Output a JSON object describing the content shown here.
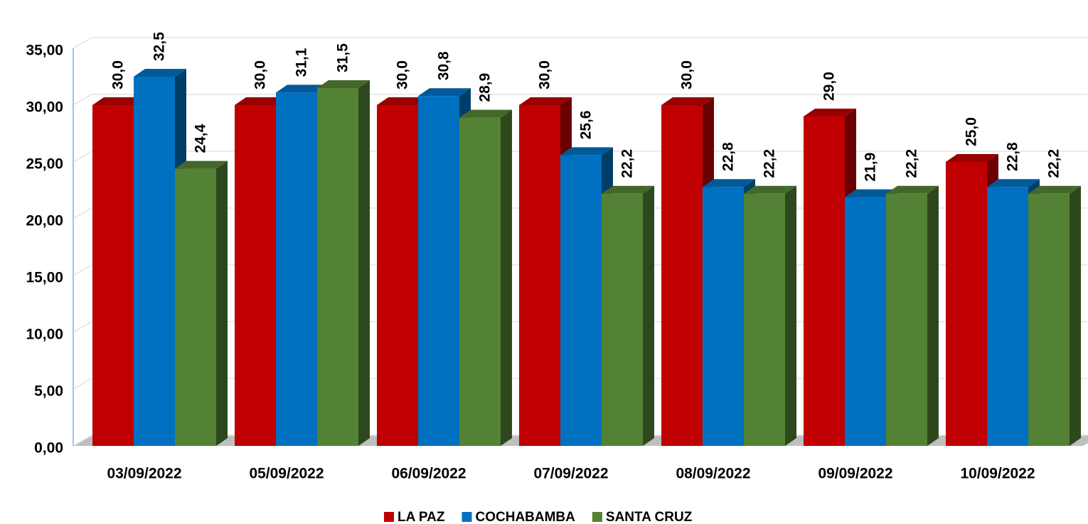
{
  "chart_data": {
    "type": "bar3d",
    "categories": [
      "03/09/2022",
      "05/09/2022",
      "06/09/2022",
      "07/09/2022",
      "08/09/2022",
      "09/09/2022",
      "10/09/2022"
    ],
    "series": [
      {
        "name": "LA PAZ",
        "color": "#c00000",
        "values": [
          30.0,
          30.0,
          30.0,
          30.0,
          30.0,
          29.0,
          25.0
        ],
        "value_labels": [
          "30,0",
          "30,0",
          "30,0",
          "30,0",
          "30,0",
          "29,0",
          "25,0"
        ]
      },
      {
        "name": "COCHABAMBA",
        "color": "#0070c0",
        "values": [
          32.5,
          31.1,
          30.8,
          25.6,
          22.8,
          21.9,
          22.8
        ],
        "value_labels": [
          "32,5",
          "31,1",
          "30,8",
          "25,6",
          "22,8",
          "21,9",
          "22,8"
        ]
      },
      {
        "name": "SANTA CRUZ",
        "color": "#548235",
        "values": [
          24.4,
          31.5,
          28.9,
          22.2,
          22.2,
          22.2,
          22.2
        ],
        "value_labels": [
          "24,4",
          "31,5",
          "28,9",
          "22,2",
          "22,2",
          "22,2",
          "22,2"
        ]
      }
    ],
    "ylim": [
      0,
      35
    ],
    "yticks": [
      {
        "value": 0,
        "label": "0,00"
      },
      {
        "value": 5,
        "label": "5,00"
      },
      {
        "value": 10,
        "label": "10,00"
      },
      {
        "value": 15,
        "label": "15,00"
      },
      {
        "value": 20,
        "label": "20,00"
      },
      {
        "value": 25,
        "label": "25,00"
      },
      {
        "value": 30,
        "label": "30,00"
      },
      {
        "value": 35,
        "label": "35,00"
      }
    ],
    "grid": true,
    "legend": "bottom"
  }
}
